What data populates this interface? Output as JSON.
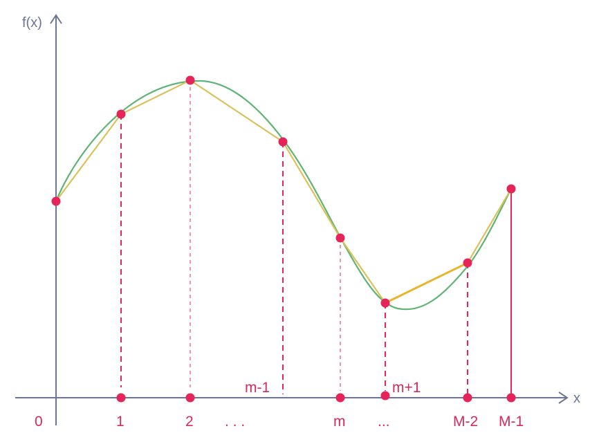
{
  "diagram": {
    "y_axis_label": "f(x)",
    "x_axis_label": "x",
    "colors": {
      "axis": "#6b7494",
      "curve": "#5fb373",
      "polyline": "#d9c25a",
      "highlight_segment": "#e8b52a",
      "points": "#e5245a",
      "labels": "#d42a5a"
    },
    "tick_labels": [
      "0",
      "1",
      "2",
      ". . .",
      "m-1",
      "m",
      "...",
      "m+1",
      "M-2",
      "M-1"
    ]
  }
}
